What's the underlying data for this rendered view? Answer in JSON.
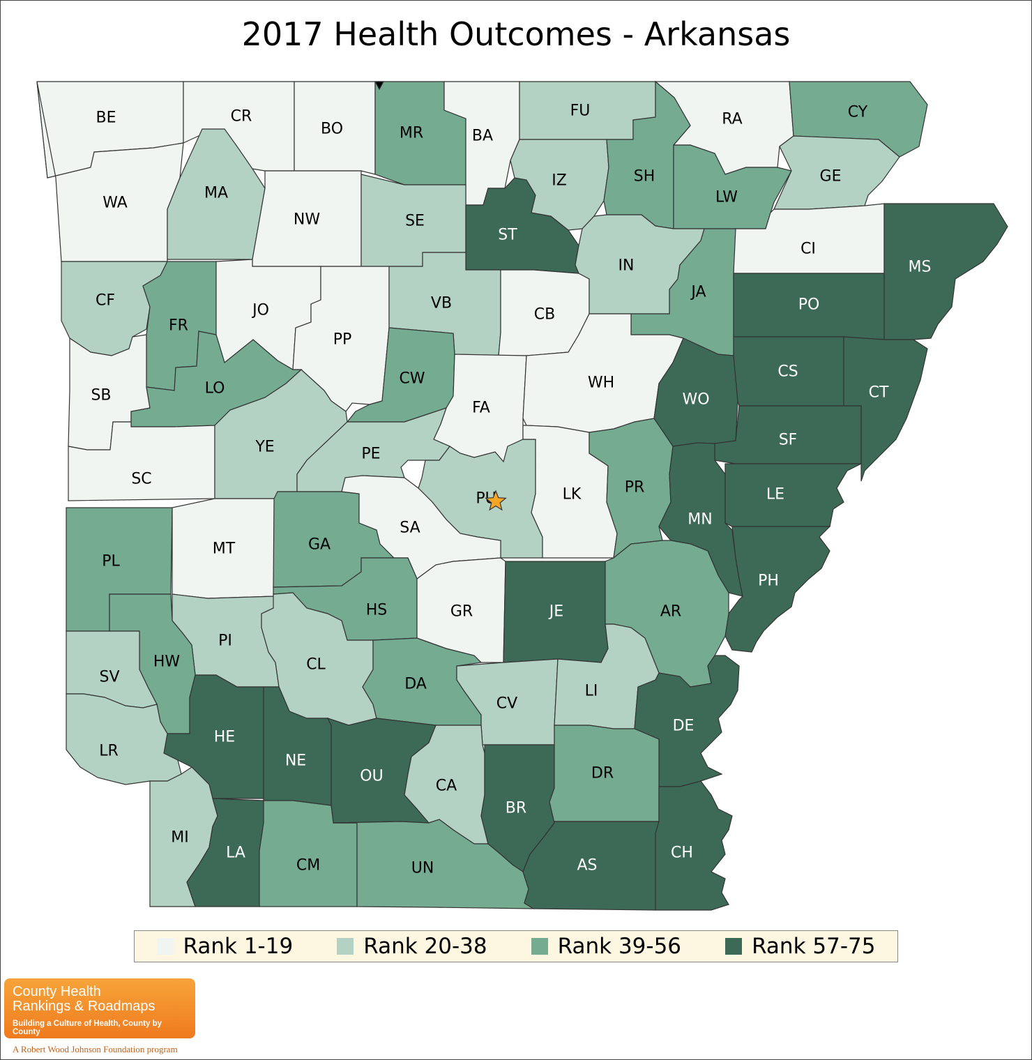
{
  "title": "2017 Health Outcomes - Arkansas",
  "colors": {
    "rank_1_19": "#f1f5f2",
    "rank_20_38": "#b3d2c3",
    "rank_39_56": "#74ab91",
    "rank_57_75": "#3c6a56",
    "label_dark": "#000000",
    "label_light": "#ffffff",
    "marker": "#f5a623"
  },
  "legend": [
    {
      "label": "Rank 1-19",
      "tier": "rank_1_19"
    },
    {
      "label": "Rank 20-38",
      "tier": "rank_20_38"
    },
    {
      "label": "Rank 39-56",
      "tier": "rank_39_56"
    },
    {
      "label": "Rank 57-75",
      "tier": "rank_57_75"
    }
  ],
  "counties": [
    {
      "code": "BE",
      "tier": "rank_1_19"
    },
    {
      "code": "CR",
      "tier": "rank_1_19"
    },
    {
      "code": "BO",
      "tier": "rank_1_19"
    },
    {
      "code": "MR",
      "tier": "rank_39_56"
    },
    {
      "code": "BA",
      "tier": "rank_1_19"
    },
    {
      "code": "FU",
      "tier": "rank_20_38"
    },
    {
      "code": "RA",
      "tier": "rank_1_19"
    },
    {
      "code": "CY",
      "tier": "rank_39_56"
    },
    {
      "code": "WA",
      "tier": "rank_1_19"
    },
    {
      "code": "MA",
      "tier": "rank_20_38"
    },
    {
      "code": "NW",
      "tier": "rank_1_19"
    },
    {
      "code": "SE",
      "tier": "rank_20_38"
    },
    {
      "code": "ST",
      "tier": "rank_57_75"
    },
    {
      "code": "IZ",
      "tier": "rank_20_38"
    },
    {
      "code": "SH",
      "tier": "rank_39_56"
    },
    {
      "code": "LW",
      "tier": "rank_39_56"
    },
    {
      "code": "GE",
      "tier": "rank_20_38"
    },
    {
      "code": "CI",
      "tier": "rank_1_19"
    },
    {
      "code": "MS",
      "tier": "rank_57_75"
    },
    {
      "code": "CF",
      "tier": "rank_20_38"
    },
    {
      "code": "FR",
      "tier": "rank_39_56"
    },
    {
      "code": "JO",
      "tier": "rank_1_19"
    },
    {
      "code": "PP",
      "tier": "rank_1_19"
    },
    {
      "code": "VB",
      "tier": "rank_20_38"
    },
    {
      "code": "CB",
      "tier": "rank_1_19"
    },
    {
      "code": "IN",
      "tier": "rank_20_38"
    },
    {
      "code": "JA",
      "tier": "rank_39_56"
    },
    {
      "code": "PO",
      "tier": "rank_57_75"
    },
    {
      "code": "SB",
      "tier": "rank_1_19"
    },
    {
      "code": "LO",
      "tier": "rank_39_56"
    },
    {
      "code": "CW",
      "tier": "rank_39_56"
    },
    {
      "code": "FA",
      "tier": "rank_1_19"
    },
    {
      "code": "WH",
      "tier": "rank_1_19"
    },
    {
      "code": "WO",
      "tier": "rank_57_75"
    },
    {
      "code": "CS",
      "tier": "rank_57_75"
    },
    {
      "code": "CT",
      "tier": "rank_57_75"
    },
    {
      "code": "SC",
      "tier": "rank_1_19"
    },
    {
      "code": "YE",
      "tier": "rank_20_38"
    },
    {
      "code": "PE",
      "tier": "rank_20_38"
    },
    {
      "code": "SF",
      "tier": "rank_57_75"
    },
    {
      "code": "PU",
      "tier": "rank_20_38"
    },
    {
      "code": "LK",
      "tier": "rank_1_19"
    },
    {
      "code": "PR",
      "tier": "rank_39_56"
    },
    {
      "code": "MN",
      "tier": "rank_57_75"
    },
    {
      "code": "LE",
      "tier": "rank_57_75"
    },
    {
      "code": "PL",
      "tier": "rank_39_56"
    },
    {
      "code": "MT",
      "tier": "rank_1_19"
    },
    {
      "code": "GA",
      "tier": "rank_39_56"
    },
    {
      "code": "SA",
      "tier": "rank_1_19"
    },
    {
      "code": "PH",
      "tier": "rank_57_75"
    },
    {
      "code": "HS",
      "tier": "rank_39_56"
    },
    {
      "code": "GR",
      "tier": "rank_1_19"
    },
    {
      "code": "JE",
      "tier": "rank_57_75"
    },
    {
      "code": "AR",
      "tier": "rank_39_56"
    },
    {
      "code": "PI",
      "tier": "rank_20_38"
    },
    {
      "code": "HW",
      "tier": "rank_39_56"
    },
    {
      "code": "SV",
      "tier": "rank_20_38"
    },
    {
      "code": "CL",
      "tier": "rank_20_38"
    },
    {
      "code": "DA",
      "tier": "rank_39_56"
    },
    {
      "code": "CV",
      "tier": "rank_20_38"
    },
    {
      "code": "LI",
      "tier": "rank_20_38"
    },
    {
      "code": "DE",
      "tier": "rank_57_75"
    },
    {
      "code": "HE",
      "tier": "rank_57_75"
    },
    {
      "code": "NE",
      "tier": "rank_57_75"
    },
    {
      "code": "OU",
      "tier": "rank_57_75"
    },
    {
      "code": "LR",
      "tier": "rank_20_38"
    },
    {
      "code": "CA",
      "tier": "rank_20_38"
    },
    {
      "code": "BR",
      "tier": "rank_57_75"
    },
    {
      "code": "DR",
      "tier": "rank_39_56"
    },
    {
      "code": "MI",
      "tier": "rank_20_38"
    },
    {
      "code": "LA",
      "tier": "rank_57_75"
    },
    {
      "code": "CM",
      "tier": "rank_39_56"
    },
    {
      "code": "UN",
      "tier": "rank_39_56"
    },
    {
      "code": "AS",
      "tier": "rank_57_75"
    },
    {
      "code": "CH",
      "tier": "rank_57_75"
    }
  ],
  "capital_marker": {
    "county": "PU",
    "icon": "star-icon"
  },
  "logo": {
    "line1": "County Health",
    "line2": "Rankings & Roadmaps",
    "tagline": "Building a Culture of Health, County by County"
  },
  "footnote": "A Robert Wood Johnson Foundation program"
}
